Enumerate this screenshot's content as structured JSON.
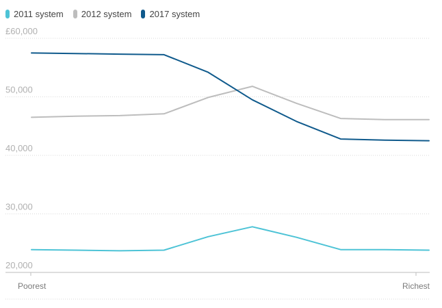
{
  "chart_data": {
    "type": "line",
    "title": "",
    "xlabel": "",
    "ylabel": "",
    "y_tick_labels": [
      "£60,000",
      "50,000",
      "40,000",
      "30,000",
      "20,000"
    ],
    "y_ticks": [
      60000,
      50000,
      40000,
      30000,
      20000
    ],
    "x_tick_labels": [
      "Poorest",
      "Richest"
    ],
    "x": [
      1,
      2,
      3,
      4,
      5,
      6,
      7,
      8,
      9,
      10
    ],
    "xlim": [
      1,
      10
    ],
    "ylim": [
      19000,
      61000
    ],
    "grid": true,
    "legend_position": "top-left",
    "series": [
      {
        "name": "2011 system",
        "color": "#4dc3d6",
        "values": [
          23900,
          23800,
          23700,
          23800,
          26100,
          27800,
          26000,
          23900,
          23900,
          23800
        ]
      },
      {
        "name": "2012 system",
        "color": "#bdbdbd",
        "values": [
          46500,
          46700,
          46800,
          47100,
          49900,
          51800,
          48900,
          46300,
          46100,
          46100
        ]
      },
      {
        "name": "2017 system",
        "color": "#0f5a8c",
        "values": [
          57500,
          57400,
          57300,
          57200,
          54200,
          49500,
          45800,
          42800,
          42600,
          42500
        ]
      }
    ]
  }
}
